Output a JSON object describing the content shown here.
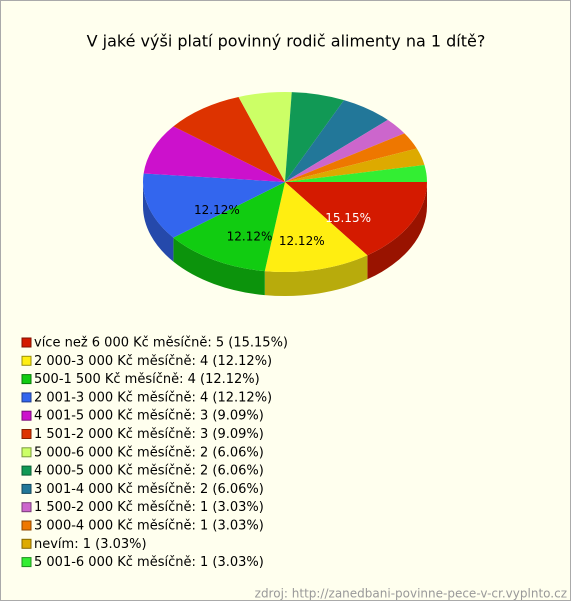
{
  "chart_data": {
    "type": "pie",
    "title": "V jaké výši platí povinný rodič alimenty na 1 dítě?",
    "categories": [
      "více než 6 000 Kč měsíčně: 5 (15.15%)",
      "2 000-3 000 Kč měsíčně: 4 (12.12%)",
      "500-1 500 Kč měsíčně: 4 (12.12%)",
      "2 001-3 000 Kč měsíčně: 4 (12.12%)",
      "4 001-5 000 Kč měsíčně: 3 (9.09%)",
      "1 501-2 000 Kč měsíčně: 3 (9.09%)",
      "5 000-6 000 Kč měsíčně: 2 (6.06%)",
      "4 000-5 000 Kč měsíčně: 2 (6.06%)",
      "3 001-4 000 Kč měsíčně: 2 (6.06%)",
      "1 500-2 000 Kč měsíčně: 1 (3.03%)",
      "3 000-4 000 Kč měsíčně: 1 (3.03%)",
      "nevím: 1 (3.03%)",
      "5 001-6 000 Kč měsíčně: 1 (3.03%)"
    ],
    "values": [
      15.15,
      12.12,
      12.12,
      12.12,
      9.09,
      9.09,
      6.06,
      6.06,
      6.06,
      3.03,
      3.03,
      3.03,
      3.03
    ],
    "value_labels": [
      "15.15%",
      "12.12%",
      "12.12%",
      "12.12%",
      null,
      null,
      null,
      null,
      null,
      null,
      null,
      null,
      null
    ],
    "colors": [
      "#d41a00",
      "#ffee11",
      "#11cc11",
      "#3366ee",
      "#cc11cc",
      "#dd3300",
      "#ccff66",
      "#119955",
      "#227799",
      "#cc66cc",
      "#ee7700",
      "#ddaa00",
      "#33ee33"
    ],
    "source": "zdroj: http://zanedbani-povinne-pece-v-cr.vyplnto.cz"
  }
}
